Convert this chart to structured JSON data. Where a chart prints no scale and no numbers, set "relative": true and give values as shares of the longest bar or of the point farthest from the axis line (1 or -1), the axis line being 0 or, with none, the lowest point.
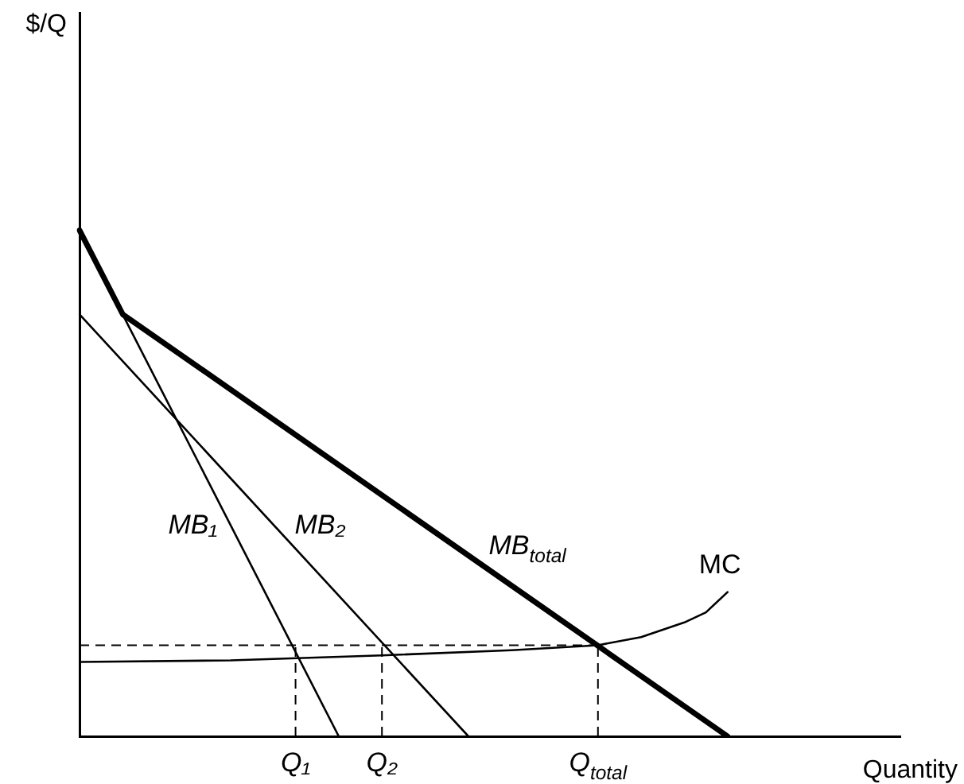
{
  "chart_data": {
    "type": "line",
    "relative": true,
    "xlabel": "Quantity",
    "annotations": [
      "$/Q"
    ],
    "categories": [
      null,
      null,
      null,
      null,
      null,
      null,
      null,
      null,
      null,
      null,
      "Q₁",
      null,
      null,
      null,
      "Q₂",
      null,
      null,
      null,
      null,
      null,
      null,
      null,
      null,
      null,
      "Q$_{total}$",
      null,
      null,
      null,
      null,
      null,
      null,
      null,
      null,
      null,
      null,
      null,
      null,
      null,
      null
    ],
    "legend": false,
    "grid": false,
    "marker": "none",
    "tick_labels": "x",
    "series": [
      {
        "name": "MB₁",
        "color": "#000000",
        "values": [
          1,
          null,
          null,
          null,
          null,
          null,
          null,
          null,
          null,
          null,
          null,
          null,
          0,
          null,
          null,
          null,
          null,
          null,
          null,
          null,
          null,
          null,
          null,
          null,
          null,
          null,
          null,
          null,
          null,
          null,
          null,
          null,
          null,
          null,
          null,
          null,
          null,
          null,
          null
        ]
      },
      {
        "name": "MB₂",
        "color": "#000000",
        "values": [
          0.834,
          null,
          null,
          null,
          null,
          null,
          null,
          null,
          null,
          null,
          null,
          null,
          null,
          null,
          null,
          null,
          null,
          null,
          0,
          null,
          null,
          null,
          null,
          null,
          null,
          null,
          null,
          null,
          null,
          null,
          null,
          null,
          null,
          null,
          null,
          null,
          null,
          null,
          null
        ]
      },
      {
        "name": "MB$_{total}$",
        "color": "#000000",
        "values": [
          1,
          null,
          0.834,
          null,
          null,
          null,
          null,
          null,
          null,
          null,
          null,
          null,
          null,
          null,
          null,
          null,
          null,
          null,
          null,
          null,
          null,
          null,
          null,
          null,
          null,
          null,
          null,
          null,
          null,
          null,
          0,
          null,
          null,
          null,
          null,
          null,
          null,
          null,
          null
        ]
      },
      {
        "name": "MC",
        "color": "#000000",
        "values": [
          0.147,
          null,
          null,
          null,
          null,
          null,
          null,
          0.15,
          null,
          null,
          null,
          null,
          null,
          null,
          0.16,
          null,
          null,
          null,
          null,
          null,
          0.17,
          null,
          null,
          null,
          0.18,
          null,
          0.196,
          null,
          0.225,
          0.245,
          0.285,
          null,
          null,
          null,
          null,
          null,
          null,
          null,
          null
        ]
      }
    ],
    "ref_lines": [
      {
        "axis": "y",
        "value": 0.18,
        "color": "#000000",
        "line_style": "dashed"
      },
      {
        "axis": "x",
        "value": "Q₁",
        "color": "#000000",
        "line_style": "dashed"
      },
      {
        "axis": "x",
        "value": "Q₂",
        "color": "#000000",
        "line_style": "dashed"
      },
      {
        "axis": "x",
        "value": "Q$_{total}$",
        "color": "#000000",
        "line_style": "dashed"
      }
    ]
  }
}
